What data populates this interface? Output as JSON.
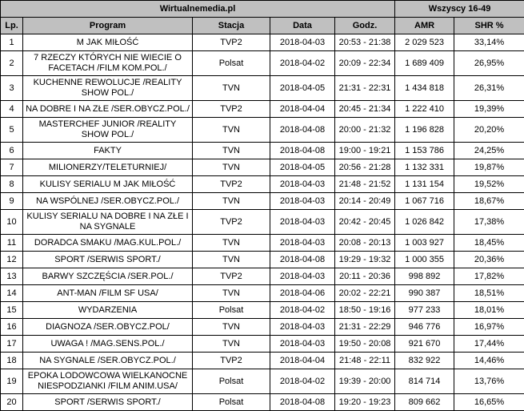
{
  "colors": {
    "header_bg": "#c0c0c0",
    "row_bg": "#ffffff",
    "border": "#000000",
    "text": "#000000"
  },
  "chart_data": {
    "type": "table",
    "title": "Wirtualnemedia.pl",
    "group_header": "Wszyscy 16-49",
    "columns": [
      "Lp.",
      "Program",
      "Stacja",
      "Data",
      "Godz.",
      "AMR",
      "SHR %"
    ],
    "col_keys": [
      "lp",
      "program",
      "stacja",
      "data",
      "godz",
      "amr",
      "shr-percent"
    ],
    "rows": [
      [
        "1",
        "M JAK MIŁOŚĆ",
        "TVP2",
        "2018-04-03",
        "20:53 - 21:38",
        "2 029 523",
        "33,14%"
      ],
      [
        "2",
        "7 RZECZY KTÓRYCH NIE WIECIE O FACETACH /FILM KOM.POL./",
        "Polsat",
        "2018-04-02",
        "20:09 - 22:34",
        "1 689 409",
        "26,95%"
      ],
      [
        "3",
        "KUCHENNE REWOLUCJE /REALITY SHOW POL./",
        "TVN",
        "2018-04-05",
        "21:31 - 22:31",
        "1 434 818",
        "26,31%"
      ],
      [
        "4",
        "NA DOBRE I NA ZŁE /SER.OBYCZ.POL./",
        "TVP2",
        "2018-04-04",
        "20:45 - 21:34",
        "1 222 410",
        "19,39%"
      ],
      [
        "5",
        "MASTERCHEF JUNIOR /REALITY SHOW POL./",
        "TVN",
        "2018-04-08",
        "20:00 - 21:32",
        "1 196 828",
        "20,20%"
      ],
      [
        "6",
        "FAKTY",
        "TVN",
        "2018-04-08",
        "19:00 - 19:21",
        "1 153 786",
        "24,25%"
      ],
      [
        "7",
        "MILIONERZY/TELETURNIEJ/",
        "TVN",
        "2018-04-05",
        "20:56 - 21:28",
        "1 132 331",
        "19,87%"
      ],
      [
        "8",
        "KULISY SERIALU M JAK MIŁOŚĆ",
        "TVP2",
        "2018-04-03",
        "21:48 - 21:52",
        "1 131 154",
        "19,52%"
      ],
      [
        "9",
        "NA WSPÓLNEJ /SER.OBYCZ.POL./",
        "TVN",
        "2018-04-03",
        "20:14 - 20:49",
        "1 067 716",
        "18,67%"
      ],
      [
        "10",
        "KULISY SERIALU NA DOBRE I NA ZŁE I NA SYGNALE",
        "TVP2",
        "2018-04-03",
        "20:42 - 20:45",
        "1 026 842",
        "17,38%"
      ],
      [
        "11",
        "DORADCA SMAKU /MAG.KUL.POL./",
        "TVN",
        "2018-04-03",
        "20:08 - 20:13",
        "1 003 927",
        "18,45%"
      ],
      [
        "12",
        "SPORT /SERWIS SPORT./",
        "TVN",
        "2018-04-08",
        "19:29 - 19:32",
        "1 000 355",
        "20,36%"
      ],
      [
        "13",
        "BARWY SZCZĘŚCIA /SER.POL./",
        "TVP2",
        "2018-04-03",
        "20:11 - 20:36",
        "998 892",
        "17,82%"
      ],
      [
        "14",
        "ANT-MAN /FILM SF USA/",
        "TVN",
        "2018-04-06",
        "20:02 - 22:21",
        "990 387",
        "18,51%"
      ],
      [
        "15",
        "WYDARZENIA",
        "Polsat",
        "2018-04-02",
        "18:50 - 19:16",
        "977 233",
        "18,01%"
      ],
      [
        "16",
        "DIAGNOZA /SER.OBYCZ.POL/",
        "TVN",
        "2018-04-03",
        "21:31 - 22:29",
        "946 776",
        "16,97%"
      ],
      [
        "17",
        "UWAGA ! /MAG.SENS.POL./",
        "TVN",
        "2018-04-03",
        "19:50 - 20:08",
        "921 670",
        "17,44%"
      ],
      [
        "18",
        "NA SYGNALE /SER.OBYCZ.POL./",
        "TVP2",
        "2018-04-04",
        "21:48 - 22:11",
        "832 922",
        "14,46%"
      ],
      [
        "19",
        "EPOKA LODOWCOWA WIELKANOCNE NIESPODZIANKI /FILM ANIM.USA/",
        "Polsat",
        "2018-04-02",
        "19:39 - 20:00",
        "814 714",
        "13,76%"
      ],
      [
        "20",
        "SPORT /SERWIS SPORT./",
        "Polsat",
        "2018-04-08",
        "19:20 - 19:23",
        "809 662",
        "16,65%"
      ]
    ]
  }
}
